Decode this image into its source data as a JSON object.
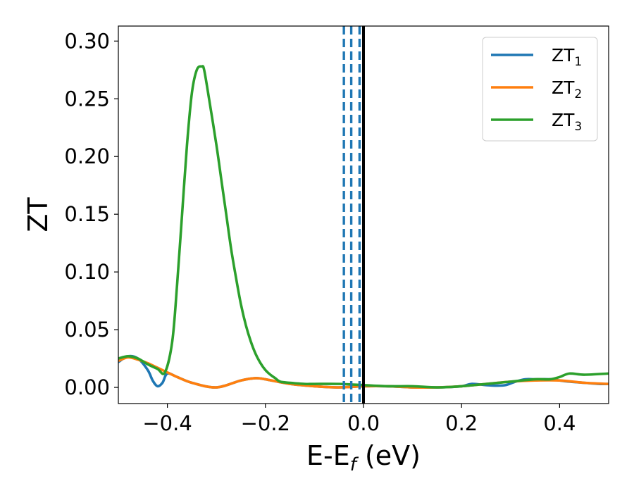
{
  "chart_data": {
    "type": "line",
    "xlabel": "E-E",
    "xlabel_subscript": "f",
    "xlabel_unit": " (eV)",
    "ylabel": "ZT",
    "xlim": [
      -0.5,
      0.5
    ],
    "ylim": [
      -0.014,
      0.313
    ],
    "xticks": [
      -0.4,
      -0.2,
      0.0,
      0.2,
      0.4
    ],
    "xtick_labels": [
      "−0.4",
      "−0.2",
      "0.0",
      "0.2",
      "0.4"
    ],
    "yticks": [
      0.0,
      0.05,
      0.1,
      0.15,
      0.2,
      0.25,
      0.3
    ],
    "ytick_labels": [
      "0.00",
      "0.05",
      "0.10",
      "0.15",
      "0.20",
      "0.25",
      "0.30"
    ],
    "grid": false,
    "legend_position": "top-right",
    "series": [
      {
        "name": "ZT",
        "name_subscript": "1",
        "color": "#1f77b4",
        "x": [
          -0.5,
          -0.48,
          -0.46,
          -0.44,
          -0.43,
          -0.42,
          -0.41,
          -0.4,
          -0.38,
          -0.35,
          -0.3,
          -0.25,
          -0.22,
          -0.2,
          -0.15,
          -0.1,
          -0.05,
          0.0,
          0.05,
          0.1,
          0.15,
          0.2,
          0.22,
          0.25,
          0.27,
          0.29,
          0.31,
          0.33,
          0.35,
          0.38,
          0.4,
          0.42,
          0.45,
          0.48,
          0.5
        ],
        "y": [
          0.022,
          0.027,
          0.025,
          0.015,
          0.006,
          0.001,
          0.004,
          0.012,
          0.009,
          0.004,
          0.0,
          0.006,
          0.008,
          0.007,
          0.003,
          0.001,
          0.0,
          0.001,
          0.001,
          0.0,
          0.0,
          0.001,
          0.003,
          0.002,
          0.0015,
          0.002,
          0.005,
          0.007,
          0.007,
          0.007,
          0.006,
          0.005,
          0.004,
          0.003,
          0.003
        ]
      },
      {
        "name": "ZT",
        "name_subscript": "2",
        "color": "#ff7f0e",
        "x": [
          -0.5,
          -0.48,
          -0.46,
          -0.44,
          -0.42,
          -0.4,
          -0.38,
          -0.35,
          -0.3,
          -0.25,
          -0.22,
          -0.2,
          -0.15,
          -0.1,
          -0.05,
          0.0,
          0.05,
          0.1,
          0.15,
          0.2,
          0.25,
          0.3,
          0.35,
          0.4,
          0.45,
          0.5
        ],
        "y": [
          0.023,
          0.026,
          0.024,
          0.021,
          0.017,
          0.013,
          0.009,
          0.004,
          0.0,
          0.006,
          0.008,
          0.007,
          0.003,
          0.001,
          0.0,
          0.001,
          0.001,
          0.0,
          0.0,
          0.001,
          0.003,
          0.005,
          0.006,
          0.006,
          0.004,
          0.003
        ]
      },
      {
        "name": "ZT",
        "name_subscript": "3",
        "color": "#2ca02c",
        "x": [
          -0.5,
          -0.48,
          -0.46,
          -0.44,
          -0.42,
          -0.405,
          -0.39,
          -0.38,
          -0.37,
          -0.36,
          -0.35,
          -0.34,
          -0.33,
          -0.325,
          -0.315,
          -0.3,
          -0.29,
          -0.28,
          -0.27,
          -0.26,
          -0.25,
          -0.24,
          -0.23,
          -0.22,
          -0.21,
          -0.2,
          -0.19,
          -0.18,
          -0.17,
          -0.15,
          -0.12,
          -0.1,
          -0.05,
          0.0,
          0.05,
          0.1,
          0.15,
          0.2,
          0.25,
          0.3,
          0.35,
          0.38,
          0.4,
          0.42,
          0.45,
          0.5
        ],
        "y": [
          0.025,
          0.027,
          0.025,
          0.02,
          0.016,
          0.013,
          0.04,
          0.09,
          0.15,
          0.21,
          0.255,
          0.275,
          0.278,
          0.275,
          0.25,
          0.21,
          0.18,
          0.15,
          0.12,
          0.095,
          0.072,
          0.054,
          0.04,
          0.029,
          0.021,
          0.015,
          0.011,
          0.008,
          0.005,
          0.004,
          0.003,
          0.003,
          0.003,
          0.002,
          0.001,
          0.001,
          0.0,
          0.001,
          0.003,
          0.005,
          0.007,
          0.007,
          0.009,
          0.012,
          0.011,
          0.012
        ]
      }
    ],
    "vertical_lines": [
      {
        "x": -0.04,
        "style": "dashed",
        "color": "#1f77b4"
      },
      {
        "x": -0.025,
        "style": "dashed",
        "color": "#1f77b4"
      },
      {
        "x": -0.008,
        "style": "dashed",
        "color": "#1f77b4"
      },
      {
        "x": 0.0,
        "style": "solid",
        "color": "#000000"
      }
    ]
  }
}
